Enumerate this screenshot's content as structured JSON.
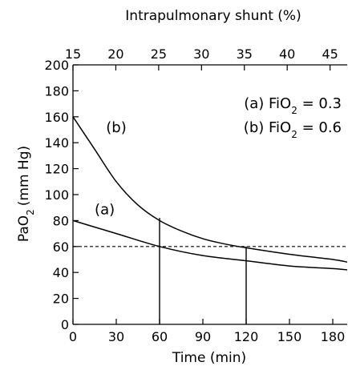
{
  "chart_data": {
    "type": "line",
    "xlabel": "Time (min)",
    "x2label": "Intrapulmonary shunt (%)",
    "ylabel_main": "PaO",
    "ylabel_sub": "2",
    "ylabel_unit": "(mm Hg)",
    "xlim": [
      0,
      190
    ],
    "ylim": [
      0,
      200
    ],
    "x2lim": [
      15,
      47
    ],
    "x_ticks": [
      0,
      30,
      60,
      90,
      120,
      150,
      180
    ],
    "y_ticks": [
      0,
      20,
      40,
      60,
      80,
      100,
      120,
      140,
      160,
      180,
      200
    ],
    "x2_ticks": [
      15,
      20,
      25,
      30,
      35,
      40,
      45
    ],
    "grid": false,
    "reference_line": {
      "y": 60,
      "style": "dashed"
    },
    "vertical_markers": [
      {
        "x": 60,
        "y_top": 82
      },
      {
        "x": 120,
        "y_top": 60
      }
    ],
    "series": [
      {
        "name": "(a)",
        "x": [
          0,
          30,
          60,
          90,
          120,
          150,
          180,
          190
        ],
        "y": [
          80,
          70,
          60,
          53,
          49,
          45,
          43,
          42
        ]
      },
      {
        "name": "(b)",
        "x": [
          0,
          15,
          30,
          45,
          60,
          75,
          90,
          105,
          120,
          150,
          180,
          190
        ],
        "y": [
          160,
          135,
          110,
          92,
          80,
          72,
          66,
          62,
          59,
          54,
          50,
          48
        ]
      }
    ],
    "legend": {
      "placement": "top-right",
      "entries": [
        {
          "prefix": "(a) FiO",
          "sub": "2",
          "suffix": " = 0.3"
        },
        {
          "prefix": "(b) FiO",
          "sub": "2",
          "suffix": " = 0.6"
        }
      ]
    },
    "curve_labels": [
      {
        "text": "(b)",
        "x": 30,
        "y": 148
      },
      {
        "text": "(a)",
        "x": 22,
        "y": 85
      }
    ]
  }
}
